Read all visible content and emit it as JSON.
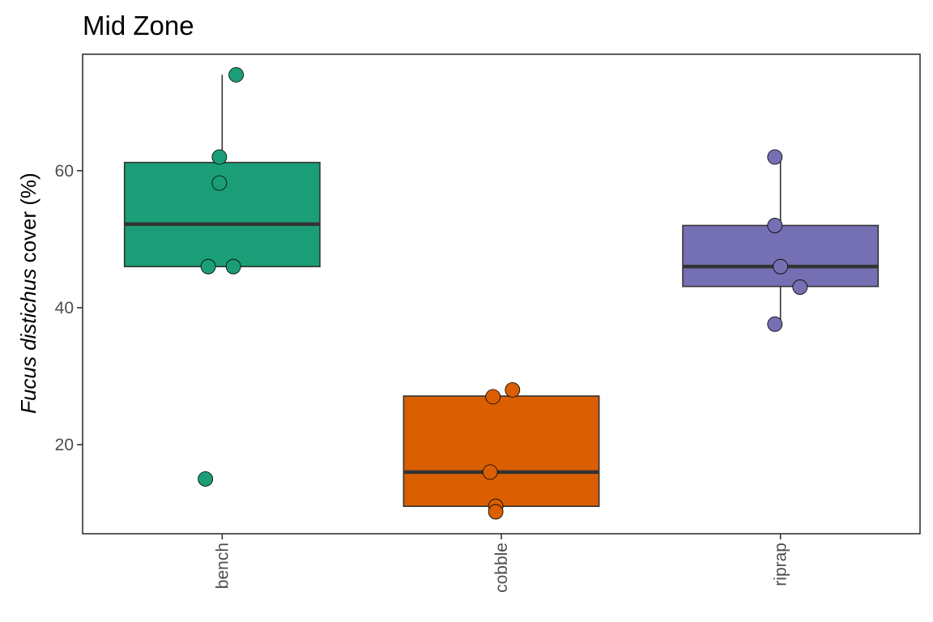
{
  "chart_data": {
    "type": "boxplot",
    "title": "Mid Zone",
    "ylabel": {
      "italic": "Fucus distichus",
      "rest": " cover (%)"
    },
    "xlabel": "",
    "ylim": [
      7,
      77
    ],
    "yticks": [
      20,
      40,
      60
    ],
    "yticklabels": [
      "20",
      "40",
      "60"
    ],
    "grid": false,
    "legend": "none",
    "categories": [
      "bench",
      "cobble",
      "riprap"
    ],
    "colors": [
      "#1b9e77",
      "#d95f02",
      "#7570b3"
    ],
    "boxes": [
      {
        "category": "bench",
        "q1": 46,
        "median": 52.2,
        "q3": 61.2,
        "whisker_low": 46,
        "whisker_high": 74
      },
      {
        "category": "cobble",
        "q1": 11,
        "median": 16,
        "q3": 27.1,
        "whisker_low": 11,
        "whisker_high": 27.1
      },
      {
        "category": "riprap",
        "q1": 43.1,
        "median": 46,
        "q3": 52,
        "whisker_low": 37.6,
        "whisker_high": 62
      }
    ],
    "points": [
      {
        "category": "bench",
        "jitter": 0.05,
        "value": 74
      },
      {
        "category": "bench",
        "jitter": -0.01,
        "value": 62
      },
      {
        "category": "bench",
        "jitter": -0.01,
        "value": 58.2
      },
      {
        "category": "bench",
        "jitter": -0.05,
        "value": 46
      },
      {
        "category": "bench",
        "jitter": 0.04,
        "value": 46
      },
      {
        "category": "bench",
        "jitter": -0.06,
        "value": 15
      },
      {
        "category": "cobble",
        "jitter": 0.04,
        "value": 28
      },
      {
        "category": "cobble",
        "jitter": -0.03,
        "value": 27
      },
      {
        "category": "cobble",
        "jitter": -0.04,
        "value": 16
      },
      {
        "category": "cobble",
        "jitter": -0.02,
        "value": 11
      },
      {
        "category": "cobble",
        "jitter": -0.02,
        "value": 10.2
      },
      {
        "category": "riprap",
        "jitter": -0.02,
        "value": 62
      },
      {
        "category": "riprap",
        "jitter": -0.02,
        "value": 52
      },
      {
        "category": "riprap",
        "jitter": 0.0,
        "value": 46
      },
      {
        "category": "riprap",
        "jitter": 0.07,
        "value": 43
      },
      {
        "category": "riprap",
        "jitter": -0.02,
        "value": 37.6
      }
    ]
  }
}
